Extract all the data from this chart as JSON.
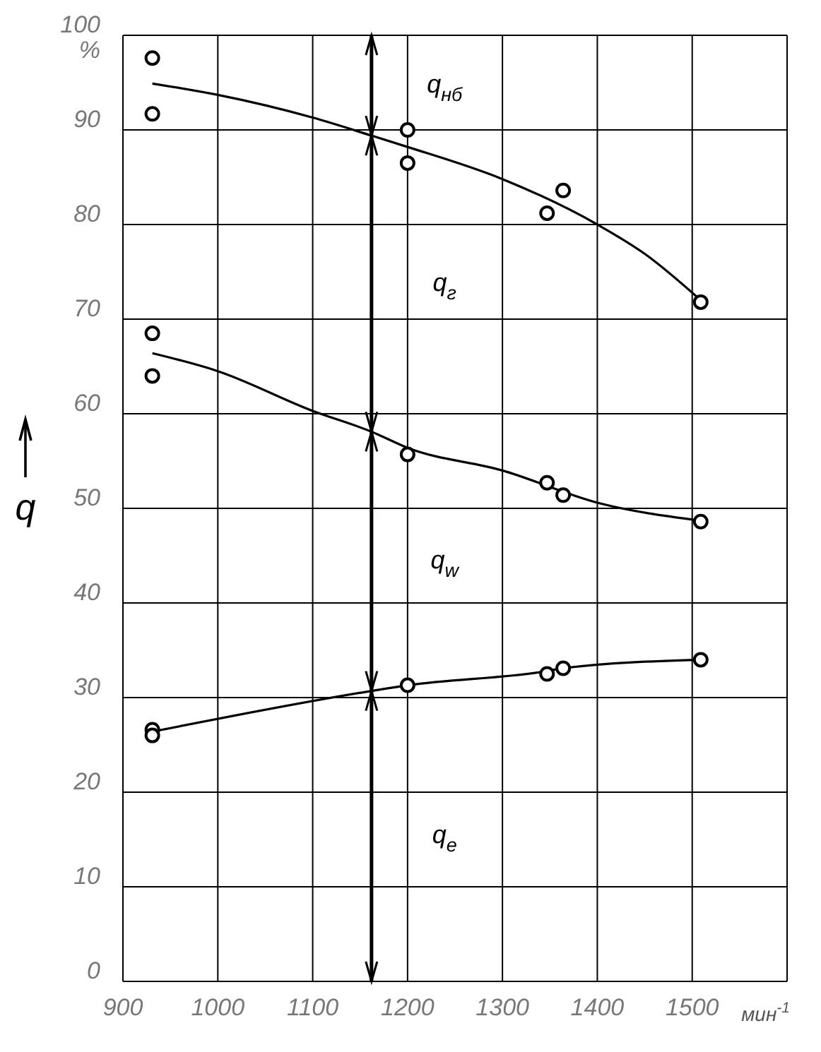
{
  "chart_data": {
    "type": "scatter",
    "xlabel": "мин$^{-1}$",
    "ylabel": "q",
    "grid": true,
    "legend": false,
    "xlim": [
      900,
      1600
    ],
    "xticks": [
      900,
      1000,
      1100,
      1200,
      1300,
      1400,
      1500,
      {
        "value": 1600,
        "label": null
      }
    ],
    "ylim": [
      0,
      100
    ],
    "yticks": [
      0,
      10,
      20,
      30,
      40,
      50,
      60,
      70,
      80,
      90,
      {
        "value": 100,
        "label": "100\n%"
      }
    ],
    "ref_lines": [
      {
        "axis": "x",
        "value": 1162,
        "label": null
      }
    ],
    "annotations": [
      "q$_{нб}$",
      "q$_{г}$",
      "q$_{w}$",
      "q$_{e}$"
    ],
    "series": [
      {
        "color": "#000000",
        "marker": "circle",
        "x": [
          931,
          931,
          1200,
          1200,
          1347,
          1364,
          1509
        ],
        "values": [
          97.6,
          91.7,
          90,
          86.5,
          81.2,
          83.6,
          71.8
        ]
      },
      {
        "type": "line",
        "color": "#000000",
        "marker": "none",
        "x": [
          931,
          1000,
          1100,
          1162,
          1200,
          1300,
          1400,
          1450,
          1509
        ],
        "values": [
          94.9,
          93.7,
          91.3,
          89.4,
          88.2,
          84.8,
          80,
          76.9,
          72
        ]
      },
      {
        "color": "#000000",
        "marker": "circle",
        "x": [
          931,
          931,
          1200,
          1347,
          1364,
          1509
        ],
        "values": [
          68.5,
          64,
          55.7,
          52.7,
          51.4,
          48.6
        ]
      },
      {
        "type": "line",
        "color": "#000000",
        "marker": "none",
        "x": [
          931,
          1000,
          1100,
          1162,
          1200,
          1300,
          1400,
          1509
        ],
        "values": [
          66.4,
          64.5,
          60.3,
          58.1,
          56.4,
          54,
          50.6,
          48.7
        ]
      },
      {
        "color": "#000000",
        "marker": "circle",
        "x": [
          931,
          931,
          1200,
          1347,
          1364,
          1509
        ],
        "values": [
          26.6,
          26,
          31.3,
          32.5,
          33.1,
          34
        ]
      },
      {
        "type": "line",
        "color": "#000000",
        "marker": "none",
        "x": [
          931,
          1162,
          1200,
          1347,
          1364,
          1509
        ],
        "values": [
          26.4,
          30.7,
          31.3,
          32.8,
          33.1,
          34
        ]
      }
    ]
  }
}
